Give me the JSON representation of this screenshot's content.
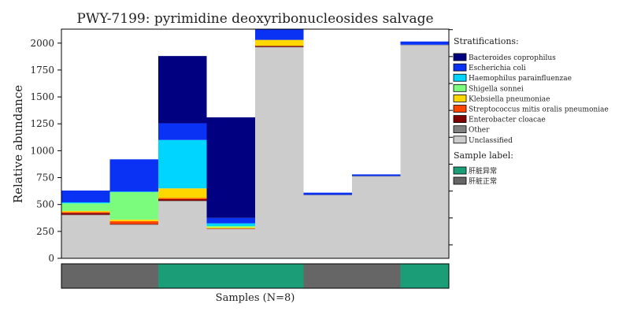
{
  "chart_data": {
    "type": "bar",
    "stacked": true,
    "title": "PWY-7199: pyrimidine deoxyribonucleosides salvage",
    "xlabel": "Samples (N=8)",
    "ylabel": "Relative abundance",
    "ylim": [
      0,
      2130
    ],
    "yticks": [
      0,
      250,
      500,
      750,
      1000,
      1250,
      1500,
      1750,
      2000
    ],
    "grid": false,
    "legend_position": "right",
    "stratifications_heading": "Stratifications:",
    "sample_label_heading": "Sample label:",
    "series": [
      {
        "name": "Unclassified",
        "color": "#cccccc",
        "values": [
          400,
          310,
          530,
          270,
          1960,
          585,
          760,
          1980
        ]
      },
      {
        "name": "Other",
        "color": "#808080",
        "values": [
          5,
          4,
          5,
          3,
          5,
          5,
          5,
          5
        ]
      },
      {
        "name": "Enterobacter cloacae",
        "color": "#800000",
        "values": [
          15,
          6,
          15,
          3,
          10,
          0,
          0,
          0
        ]
      },
      {
        "name": "Streptococcus mitis oralis pneumoniae",
        "color": "#ff4500",
        "values": [
          10,
          25,
          10,
          2,
          0,
          0,
          0,
          0
        ]
      },
      {
        "name": "Klebsiella pneumoniae",
        "color": "#ffd700",
        "values": [
          10,
          15,
          90,
          10,
          55,
          0,
          0,
          0
        ]
      },
      {
        "name": "Shigella sonnei",
        "color": "#7cfc7c",
        "values": [
          70,
          255,
          0,
          12,
          0,
          0,
          0,
          0
        ]
      },
      {
        "name": "Haemophilus parainfluenzae",
        "color": "#00d5ff",
        "values": [
          10,
          5,
          450,
          25,
          0,
          0,
          0,
          0
        ]
      },
      {
        "name": "Escherichia coli",
        "color": "#0a32f5",
        "values": [
          110,
          300,
          155,
          50,
          100,
          20,
          15,
          30
        ]
      },
      {
        "name": "Bacteroides coprophilus",
        "color": "#000080",
        "values": [
          0,
          0,
          625,
          935,
          0,
          0,
          0,
          0
        ]
      }
    ],
    "legend_order": [
      "Bacteroides coprophilus",
      "Escherichia coli",
      "Haemophilus parainfluenzae",
      "Shigella sonnei",
      "Klebsiella pneumoniae",
      "Streptococcus mitis oralis pneumoniae",
      "Enterobacter cloacae",
      "Other",
      "Unclassified"
    ],
    "sample_labels": [
      {
        "name": "肝脏异常",
        "color": "#1b9e77"
      },
      {
        "name": "肝脏正常",
        "color": "#666666"
      }
    ],
    "sample_label_assignments": [
      1,
      1,
      0,
      0,
      0,
      1,
      1,
      0
    ]
  }
}
